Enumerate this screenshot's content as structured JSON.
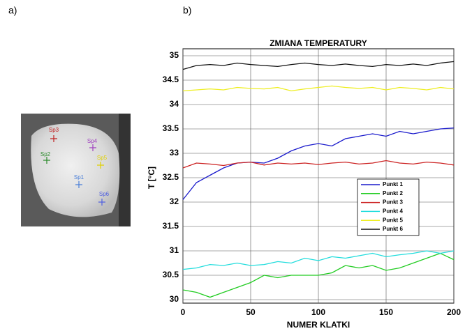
{
  "panel_labels": [
    "a)",
    "b)"
  ],
  "thermal_image": {
    "markers": [
      {
        "label": "Sp1",
        "color": "#4a7fd8"
      },
      {
        "label": "Sp2",
        "color": "#2a8a2a"
      },
      {
        "label": "Sp3",
        "color": "#c02020"
      },
      {
        "label": "Sp4",
        "color": "#a040c0"
      },
      {
        "label": "Sp5",
        "color": "#e0d000"
      },
      {
        "label": "Sp6",
        "color": "#5060e0"
      }
    ]
  },
  "chart_data": {
    "type": "line",
    "title": "ZMIANA TEMPERATURY",
    "x_label": "NUMER KLATKI",
    "y_label": "T [°C]",
    "x": [
      0,
      10,
      20,
      30,
      40,
      50,
      60,
      70,
      80,
      90,
      100,
      110,
      120,
      130,
      140,
      150,
      160,
      170,
      180,
      190,
      200
    ],
    "series": [
      {
        "name": "Punkt 1",
        "color": "#1a1acc",
        "values": [
          32.05,
          32.4,
          32.55,
          32.7,
          32.8,
          32.82,
          32.8,
          32.9,
          33.05,
          33.15,
          33.2,
          33.15,
          33.3,
          33.35,
          33.4,
          33.35,
          33.45,
          33.4,
          33.45,
          33.5,
          33.52
        ]
      },
      {
        "name": "Punkt 2",
        "color": "#22cc22",
        "values": [
          30.2,
          30.15,
          30.05,
          30.15,
          30.25,
          30.35,
          30.5,
          30.45,
          30.5,
          30.5,
          30.5,
          30.55,
          30.7,
          30.65,
          30.7,
          30.6,
          30.65,
          30.75,
          30.85,
          30.95,
          30.82
        ]
      },
      {
        "name": "Punkt 3",
        "color": "#cc2222",
        "values": [
          32.7,
          32.8,
          32.78,
          32.75,
          32.8,
          32.82,
          32.76,
          32.8,
          32.78,
          32.8,
          32.77,
          32.8,
          32.82,
          32.78,
          32.8,
          32.85,
          32.8,
          32.78,
          32.82,
          32.8,
          32.76
        ]
      },
      {
        "name": "Punkt 4",
        "color": "#22dddd",
        "values": [
          30.62,
          30.65,
          30.72,
          30.7,
          30.75,
          30.7,
          30.72,
          30.78,
          30.75,
          30.85,
          30.8,
          30.88,
          30.85,
          30.9,
          30.95,
          30.88,
          30.92,
          30.95,
          31.0,
          30.95,
          31.0
        ]
      },
      {
        "name": "Punkt 5",
        "color": "#eeee22",
        "values": [
          34.28,
          34.3,
          34.32,
          34.3,
          34.35,
          34.33,
          34.32,
          34.35,
          34.28,
          34.32,
          34.35,
          34.38,
          34.35,
          34.33,
          34.35,
          34.3,
          34.35,
          34.33,
          34.3,
          34.35,
          34.32
        ]
      },
      {
        "name": "Punkt 6",
        "color": "#111111",
        "values": [
          34.72,
          34.8,
          34.82,
          34.8,
          34.85,
          34.82,
          34.8,
          34.78,
          34.82,
          34.85,
          34.82,
          34.8,
          34.83,
          34.8,
          34.78,
          34.82,
          34.8,
          34.83,
          34.8,
          34.85,
          34.88
        ]
      }
    ],
    "xlim": [
      0,
      200
    ],
    "xticks": [
      0,
      50,
      100,
      150,
      200
    ],
    "ylim": [
      30,
      35
    ],
    "yticks": [
      30,
      30.5,
      31,
      31.5,
      32,
      32.5,
      33,
      33.5,
      34,
      34.5,
      35
    ],
    "grid": true,
    "legend": "right"
  }
}
